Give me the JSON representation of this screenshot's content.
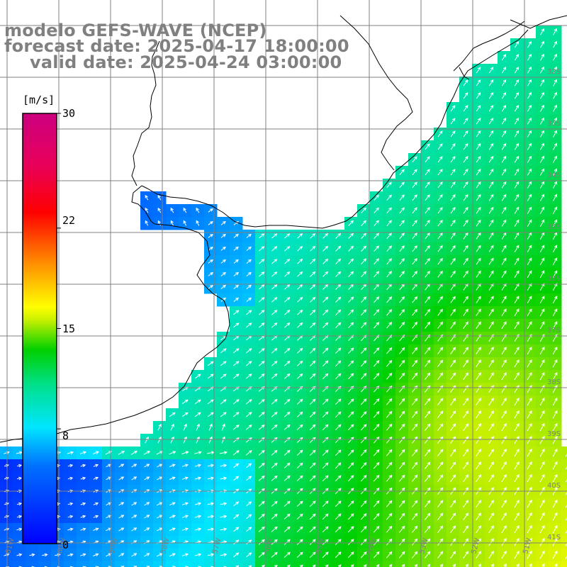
{
  "title": {
    "line1": "modelo GEFS-WAVE (NCEP)",
    "line2": "forecast date: 2025-04-17 18:00:00",
    "line3": "valid date: 2025-04-24 03:00:00"
  },
  "colorbar": {
    "unit": "[m/s]",
    "ticks": [
      {
        "value": 30,
        "label": "30"
      },
      {
        "value": 22,
        "label": "22"
      },
      {
        "value": 15,
        "label": "15"
      },
      {
        "value": 8,
        "label": "8"
      },
      {
        "value": 0,
        "label": "0"
      }
    ],
    "min": 0,
    "max": 30
  },
  "lat_labels": [
    "32S",
    "33S",
    "34S",
    "35S",
    "36S",
    "37S",
    "38S",
    "39S",
    "40S",
    "41S"
  ],
  "lon_labels": [
    "61W",
    "60W",
    "59W",
    "58W",
    "57W",
    "56W",
    "55W",
    "54W",
    "53W",
    "52W",
    "51W"
  ],
  "colors": {
    "land": "#ffffff",
    "grid": "#808080",
    "coast": "#000000",
    "arrow": "#ffffff",
    "title": "#808080"
  },
  "wind_field": {
    "speed_range_ms": [
      2,
      16
    ],
    "prevailing_direction": "from southwest",
    "strongest_area": "southeast",
    "weakest_area": "west near coast"
  }
}
